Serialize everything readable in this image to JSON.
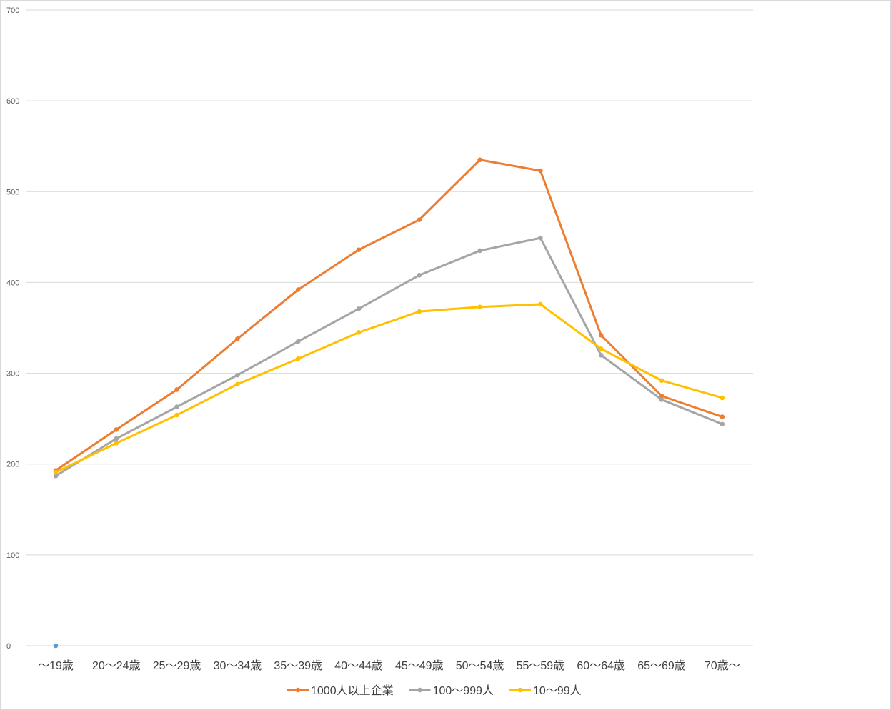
{
  "chart_data": {
    "type": "line",
    "ylim": [
      0,
      700
    ],
    "yticks": [
      "0",
      "100",
      "200",
      "300",
      "400",
      "500",
      "600",
      "700"
    ],
    "categories": [
      "～19歳",
      "20～24歳",
      "25～29歳",
      "30～34歳",
      "35～39歳",
      "40～44歳",
      "45～49歳",
      "50～54歳",
      "55～59歳",
      "60～64歳",
      "65～69歳",
      "70歳～"
    ],
    "grid": true,
    "legend_position": "bottom",
    "series": [
      {
        "name": "1000人以上企業",
        "color": "#ED7D31",
        "values": [
          193,
          238,
          282,
          338,
          392,
          436,
          469,
          535,
          523,
          342,
          275,
          252
        ]
      },
      {
        "name": "100～999人",
        "color": "#A5A5A5",
        "values": [
          187,
          228,
          263,
          298,
          335,
          371,
          408,
          435,
          449,
          320,
          271,
          244
        ]
      },
      {
        "name": "10～99人",
        "color": "#FFC000",
        "values": [
          191,
          223,
          254,
          288,
          316,
          345,
          368,
          373,
          376,
          327,
          292,
          273
        ]
      }
    ],
    "extra_points": [
      {
        "x": "～19歳",
        "y": 0,
        "color": "#5B9BD5"
      }
    ]
  }
}
